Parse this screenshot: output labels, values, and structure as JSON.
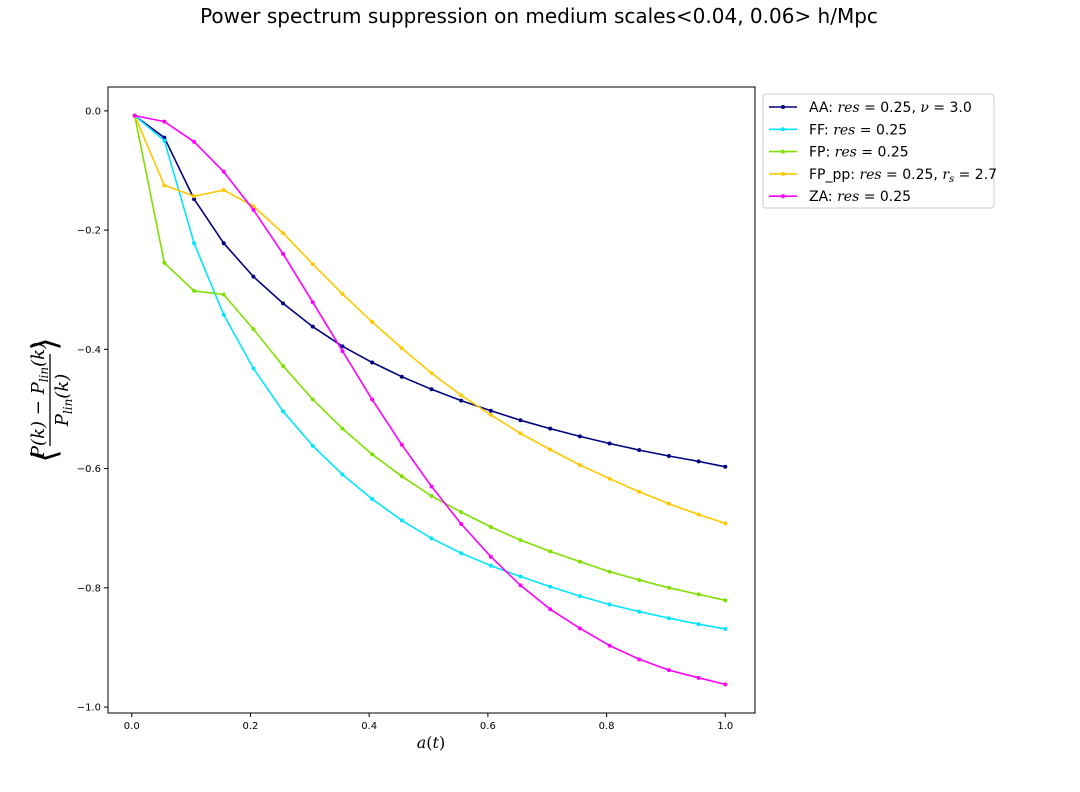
{
  "chart_data": {
    "type": "line",
    "title": "Power spectrum suppression on medium scales<0.04, 0.06> h/Mpc",
    "xlabel": "a(t)",
    "ylabel": "⟨(P(k) − P_lin(k)) / P_lin(k)⟩",
    "ylabel_parts": {
      "open": "⟨",
      "close": "⟩",
      "num_a": "P(k)",
      "num_minus": "−",
      "num_b": "P",
      "num_b_sub": "lin",
      "num_b_rest": "(k)",
      "den": "P",
      "den_sub": "lin",
      "den_rest": "(k)"
    },
    "xlim": [
      -0.04,
      1.05
    ],
    "ylim": [
      -1.01,
      0.04
    ],
    "xticks": [
      0.0,
      0.2,
      0.4,
      0.6,
      0.8,
      1.0
    ],
    "xtick_labels": [
      "0.0",
      "0.2",
      "0.4",
      "0.6",
      "0.8",
      "1.0"
    ],
    "yticks": [
      0.0,
      -0.2,
      -0.4,
      -0.6,
      -0.8,
      -1.0
    ],
    "ytick_labels": [
      "0.0",
      "−0.2",
      "−0.4",
      "−0.6",
      "−0.8",
      "−1.0"
    ],
    "grid": false,
    "legend_position": "outside-top-right",
    "x": [
      0.005,
      0.055,
      0.105,
      0.155,
      0.205,
      0.255,
      0.305,
      0.355,
      0.405,
      0.455,
      0.505,
      0.555,
      0.605,
      0.655,
      0.705,
      0.755,
      0.805,
      0.855,
      0.905,
      0.955,
      1.0
    ],
    "series": [
      {
        "name": "AA: res = 0.25, ν = 3.0",
        "legend": {
          "prefix": "AA: ",
          "m1": "res",
          "r1": " = 0.25, ",
          "m2": "ν",
          "r2": " = 3.0"
        },
        "color": "#000080",
        "values": [
          -0.008,
          -0.045,
          -0.148,
          -0.222,
          -0.278,
          -0.323,
          -0.362,
          -0.395,
          -0.422,
          -0.446,
          -0.467,
          -0.486,
          -0.503,
          -0.519,
          -0.533,
          -0.546,
          -0.558,
          -0.569,
          -0.579,
          -0.588,
          -0.597
        ]
      },
      {
        "name": "FF: res = 0.25",
        "legend": {
          "prefix": "FF: ",
          "m1": "res",
          "r1": " = 0.25"
        },
        "color": "#00e5ff",
        "values": [
          -0.008,
          -0.05,
          -0.222,
          -0.342,
          -0.432,
          -0.504,
          -0.562,
          -0.61,
          -0.651,
          -0.687,
          -0.717,
          -0.742,
          -0.763,
          -0.781,
          -0.798,
          -0.814,
          -0.828,
          -0.84,
          -0.851,
          -0.861,
          -0.869
        ]
      },
      {
        "name": "FP: res = 0.25",
        "legend": {
          "prefix": "FP: ",
          "m1": "res",
          "r1": " = 0.25"
        },
        "color": "#7fe000",
        "values": [
          -0.008,
          -0.255,
          -0.302,
          -0.308,
          -0.366,
          -0.428,
          -0.484,
          -0.533,
          -0.576,
          -0.613,
          -0.646,
          -0.673,
          -0.698,
          -0.72,
          -0.739,
          -0.756,
          -0.773,
          -0.787,
          -0.8,
          -0.811,
          -0.821
        ]
      },
      {
        "name": "FP_pp: res = 0.25, r_s = 2.7",
        "legend": {
          "prefix": "FP_pp: ",
          "m1": "res",
          "r1": " = 0.25, ",
          "m2": "r",
          "m2sub": "s",
          "r2": " = 2.7"
        },
        "color": "#ffc800",
        "values": [
          -0.008,
          -0.125,
          -0.143,
          -0.133,
          -0.16,
          -0.205,
          -0.257,
          -0.307,
          -0.354,
          -0.398,
          -0.44,
          -0.477,
          -0.51,
          -0.541,
          -0.568,
          -0.594,
          -0.617,
          -0.639,
          -0.659,
          -0.677,
          -0.692
        ]
      },
      {
        "name": "ZA: res = 0.25",
        "legend": {
          "prefix": "ZA: ",
          "m1": "res",
          "r1": " = 0.25"
        },
        "color": "#ff00ff",
        "values": [
          -0.008,
          -0.018,
          -0.052,
          -0.102,
          -0.166,
          -0.24,
          -0.321,
          -0.403,
          -0.484,
          -0.56,
          -0.63,
          -0.693,
          -0.748,
          -0.796,
          -0.836,
          -0.868,
          -0.897,
          -0.92,
          -0.938,
          -0.951,
          -0.962
        ]
      }
    ]
  }
}
